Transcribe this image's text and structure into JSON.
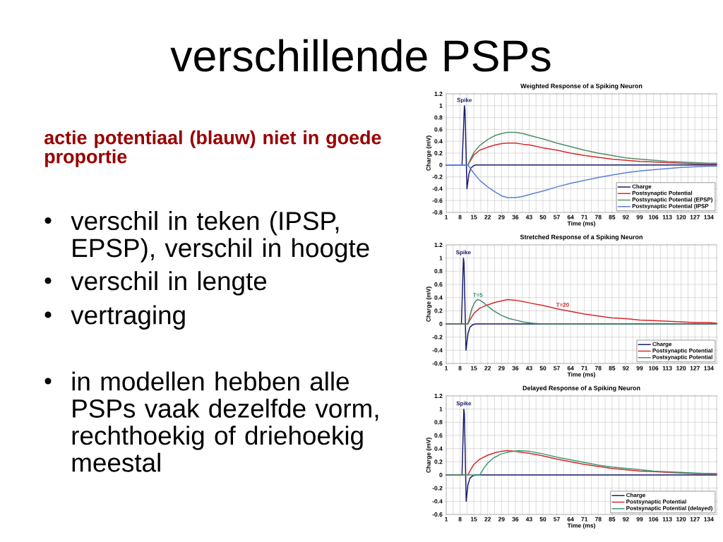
{
  "chart_data": [
    {
      "type": "other",
      "title": "verschillende PSPs",
      "subtitle": "actie potentiaal (blauw) niet in goede proportie",
      "annotations": [
        "verschil in teken (IPSP, EPSP), verschil in hoogte",
        "verschil in lengte",
        "vertraging",
        "in modellen hebben alle PSPs vaak dezelfde vorm, rechthoekig of driehoekig meestal"
      ]
    },
    {
      "type": "line",
      "title": "Weighted Response of a Spiking Neuron",
      "xlabel": "Time (ms)",
      "ylabel": "Charge (mV)",
      "xlim": [
        1,
        138
      ],
      "ylim": [
        -0.8,
        1.2
      ],
      "xticks": [
        1,
        8,
        15,
        22,
        29,
        36,
        43,
        50,
        57,
        64,
        71,
        78,
        85,
        92,
        99,
        106,
        113,
        120,
        127,
        134
      ],
      "yticks": [
        -0.8,
        -0.6,
        -0.4,
        -0.2,
        0,
        0.2,
        0.4,
        0.6,
        0.8,
        1,
        1.2
      ],
      "grid": true,
      "legend": "bottom right",
      "annotations": [
        {
          "text": "Spike",
          "x": 10.2,
          "y": 1
        }
      ],
      "series": [
        {
          "name": "Charge",
          "color": "#1c1c6c",
          "x": [
            1,
            9,
            10.2,
            10.5,
            11.5,
            12.5,
            13.5,
            15,
            16,
            138
          ],
          "values": [
            0,
            0,
            1,
            0.93,
            -0.4,
            -0.15,
            -0.05,
            -0.01,
            0,
            0
          ]
        },
        {
          "name": "Postsynaptic Potential",
          "color": "#d42a2a",
          "x": [
            1,
            12,
            13,
            15,
            18,
            22,
            26,
            29,
            32,
            36,
            40,
            43,
            50,
            57,
            64,
            71,
            78,
            85,
            92,
            99,
            106,
            113,
            120,
            127,
            134,
            138
          ],
          "values": [
            0,
            0,
            0.06,
            0.17,
            0.25,
            0.3,
            0.34,
            0.36,
            0.37,
            0.37,
            0.35,
            0.34,
            0.29,
            0.25,
            0.2,
            0.16,
            0.13,
            0.1,
            0.08,
            0.06,
            0.05,
            0.04,
            0.03,
            0.02,
            0.02,
            0.02
          ]
        },
        {
          "name": "Postsynaptic Potential (EPSP)",
          "color": "#4f8f6a",
          "x": [
            1,
            12,
            13,
            15,
            18,
            22,
            26,
            29,
            32,
            36,
            40,
            43,
            50,
            57,
            64,
            71,
            78,
            85,
            92,
            99,
            106,
            113,
            120,
            127,
            134,
            138
          ],
          "values": [
            0,
            0,
            0.08,
            0.21,
            0.33,
            0.43,
            0.5,
            0.53,
            0.55,
            0.55,
            0.53,
            0.5,
            0.44,
            0.37,
            0.31,
            0.25,
            0.2,
            0.16,
            0.12,
            0.1,
            0.08,
            0.06,
            0.05,
            0.04,
            0.03,
            0.03
          ]
        },
        {
          "name": "Postsynaptic Potential (IPSP",
          "color": "#5b7fd8",
          "x": [
            1,
            12,
            13,
            15,
            18,
            22,
            26,
            29,
            32,
            36,
            40,
            43,
            50,
            57,
            64,
            71,
            78,
            85,
            92,
            99,
            106,
            113,
            120,
            127,
            134,
            138
          ],
          "values": [
            0,
            0,
            -0.05,
            -0.14,
            -0.26,
            -0.37,
            -0.46,
            -0.52,
            -0.55,
            -0.55,
            -0.53,
            -0.5,
            -0.44,
            -0.37,
            -0.31,
            -0.26,
            -0.21,
            -0.17,
            -0.13,
            -0.1,
            -0.08,
            -0.06,
            -0.04,
            -0.03,
            -0.02,
            -0.02
          ]
        }
      ]
    },
    {
      "type": "line",
      "title": "Stretched Response of a Spiking Neuron",
      "xlabel": "Time (ms)",
      "ylabel": "Charge (mV)",
      "xlim": [
        1,
        138
      ],
      "ylim": [
        -0.6,
        1.2
      ],
      "xticks": [
        1,
        8,
        15,
        22,
        29,
        36,
        43,
        50,
        57,
        64,
        71,
        78,
        85,
        92,
        99,
        106,
        113,
        120,
        127,
        134
      ],
      "yticks": [
        -0.6,
        -0.4,
        -0.2,
        0,
        0.2,
        0.4,
        0.6,
        0.8,
        1,
        1.2
      ],
      "grid": true,
      "legend": "bottom right",
      "annotations": [
        {
          "text": "Spike",
          "x": 9.7,
          "y": 1
        },
        {
          "text": "T=5",
          "x": 17,
          "y": 0.37
        },
        {
          "text": "T=20",
          "x": 60,
          "y": 0.22
        }
      ],
      "series": [
        {
          "name": "Charge",
          "color": "#1c1c6c",
          "x": [
            1,
            8.7,
            9.7,
            10,
            11,
            12,
            13,
            14.5,
            16,
            138
          ],
          "values": [
            0,
            0,
            1,
            0.93,
            -0.4,
            -0.15,
            -0.05,
            -0.01,
            0,
            0
          ]
        },
        {
          "name": "Postsynaptic Potential",
          "color": "#d42a2a",
          "x": [
            1,
            12,
            13,
            15,
            18,
            22,
            26,
            29,
            32,
            36,
            40,
            43,
            50,
            57,
            64,
            71,
            78,
            85,
            92,
            99,
            106,
            113,
            120,
            127,
            134,
            138
          ],
          "values": [
            0,
            0,
            0.06,
            0.16,
            0.24,
            0.29,
            0.33,
            0.35,
            0.37,
            0.36,
            0.34,
            0.32,
            0.28,
            0.23,
            0.19,
            0.15,
            0.12,
            0.09,
            0.08,
            0.06,
            0.05,
            0.04,
            0.03,
            0.02,
            0.02,
            0.01
          ]
        },
        {
          "name": "Postsynaptic Potential",
          "color": "#3f8a6a",
          "x": [
            1,
            12,
            13,
            14,
            15,
            16,
            17,
            18,
            20,
            22,
            25,
            29,
            33,
            36,
            40,
            45,
            50,
            138
          ],
          "values": [
            0,
            0,
            0.12,
            0.23,
            0.3,
            0.35,
            0.37,
            0.36,
            0.32,
            0.27,
            0.2,
            0.13,
            0.08,
            0.06,
            0.03,
            0.01,
            0,
            0
          ]
        }
      ]
    },
    {
      "type": "line",
      "title": "Delayed Response of a Spiking Neuron",
      "xlabel": "Time (ms)",
      "ylabel": "Charge (mV)",
      "xlim": [
        1,
        138
      ],
      "ylim": [
        -0.6,
        1.2
      ],
      "xticks": [
        1,
        8,
        15,
        22,
        29,
        36,
        43,
        50,
        57,
        64,
        71,
        78,
        85,
        92,
        99,
        106,
        113,
        120,
        127,
        134
      ],
      "yticks": [
        -0.6,
        -0.4,
        -0.2,
        0,
        0.2,
        0.4,
        0.6,
        0.8,
        1,
        1.2
      ],
      "grid": true,
      "legend": "bottom right",
      "annotations": [
        {
          "text": "Spike",
          "x": 9.9,
          "y": 1
        }
      ],
      "series": [
        {
          "name": "Charge",
          "color": "#1c1c6c",
          "x": [
            1,
            9,
            9.9,
            10.2,
            11.1,
            12,
            13,
            14.5,
            16,
            138
          ],
          "values": [
            0,
            0,
            1,
            0.93,
            -0.4,
            -0.15,
            -0.05,
            -0.01,
            0,
            0
          ]
        },
        {
          "name": "Postsynaptic Potential",
          "color": "#d42a2a",
          "x": [
            1,
            12,
            13,
            15,
            18,
            22,
            26,
            29,
            32,
            36,
            40,
            43,
            50,
            57,
            64,
            71,
            78,
            85,
            92,
            99,
            106,
            113,
            120,
            127,
            134,
            138
          ],
          "values": [
            0,
            0,
            0.06,
            0.16,
            0.24,
            0.3,
            0.34,
            0.36,
            0.37,
            0.36,
            0.34,
            0.33,
            0.29,
            0.24,
            0.2,
            0.16,
            0.13,
            0.1,
            0.08,
            0.06,
            0.05,
            0.04,
            0.03,
            0.02,
            0.02,
            0.01
          ]
        },
        {
          "name": "Postsynaptic Potential (delayed)",
          "color": "#3f9a78",
          "x": [
            1,
            18,
            19,
            20,
            22,
            25,
            29,
            33,
            38,
            43,
            50,
            57,
            64,
            71,
            78,
            85,
            92,
            99,
            106,
            113,
            120,
            127,
            134,
            138
          ],
          "values": [
            0,
            0,
            0.05,
            0.1,
            0.18,
            0.26,
            0.32,
            0.35,
            0.37,
            0.36,
            0.32,
            0.27,
            0.23,
            0.19,
            0.15,
            0.12,
            0.1,
            0.08,
            0.06,
            0.05,
            0.04,
            0.03,
            0.02,
            0.02
          ]
        }
      ]
    }
  ]
}
